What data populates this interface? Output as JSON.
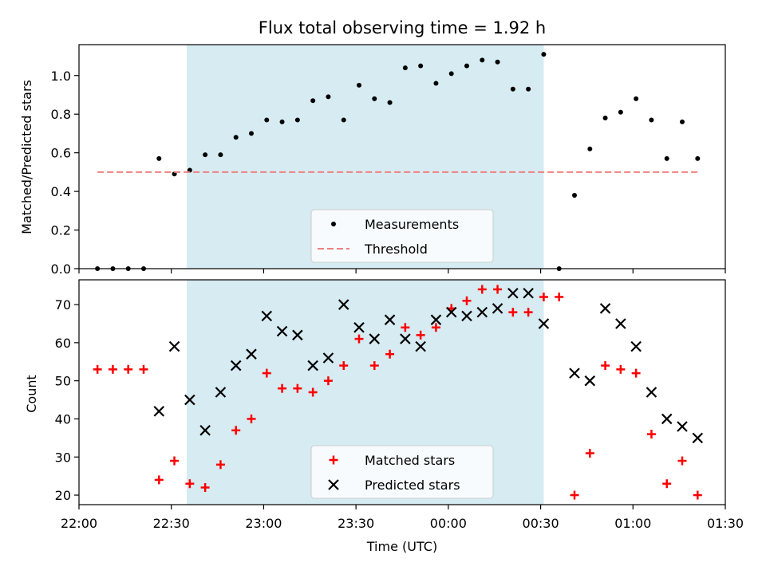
{
  "chart_data": [
    {
      "type": "scatter",
      "title": "Flux total observing time = 1.92 h",
      "xlabel": "",
      "ylabel": "Matched/Predicted stars",
      "xlim": [
        "22:00",
        "01:30"
      ],
      "ylim": [
        0.0,
        1.16
      ],
      "yticks": [
        "0.0",
        "0.2",
        "0.4",
        "0.6",
        "0.8",
        "1.0"
      ],
      "highlight_span": {
        "start": "22:35",
        "end": "00:31",
        "color": "#add8e6"
      },
      "series": [
        {
          "name": "Measurements",
          "marker": "dot",
          "color": "#000000",
          "x": [
            "22:06",
            "22:11",
            "22:16",
            "22:21",
            "22:26",
            "22:31",
            "22:36",
            "22:41",
            "22:46",
            "22:51",
            "22:56",
            "23:01",
            "23:06",
            "23:11",
            "23:16",
            "23:21",
            "23:26",
            "23:31",
            "23:36",
            "23:41",
            "23:46",
            "23:51",
            "23:56",
            "00:01",
            "00:06",
            "00:11",
            "00:16",
            "00:21",
            "00:26",
            "00:31",
            "00:36",
            "00:41",
            "00:46",
            "00:51",
            "00:56",
            "01:01",
            "01:06",
            "01:11",
            "01:16",
            "01:21"
          ],
          "y": [
            0.0,
            0.0,
            0.0,
            0.0,
            0.57,
            0.49,
            0.51,
            0.59,
            0.59,
            0.68,
            0.7,
            0.77,
            0.76,
            0.77,
            0.87,
            0.89,
            0.77,
            0.95,
            0.88,
            0.86,
            1.04,
            1.05,
            0.96,
            1.01,
            1.05,
            1.08,
            1.07,
            0.93,
            0.93,
            1.11,
            0.0,
            0.38,
            0.62,
            0.78,
            0.81,
            0.88,
            0.77,
            0.57,
            0.76,
            0.57
          ]
        },
        {
          "name": "Threshold",
          "marker": "dashed-line",
          "color": "#f08080",
          "x": [
            "22:06",
            "01:21"
          ],
          "y": [
            0.5,
            0.5
          ]
        }
      ],
      "legend": "lower-center"
    },
    {
      "type": "scatter",
      "xlabel": "Time (UTC)",
      "ylabel": "Count",
      "xlim": [
        "22:00",
        "01:30"
      ],
      "xticks": [
        "22:00",
        "22:30",
        "23:00",
        "23:30",
        "00:00",
        "00:30",
        "01:00",
        "01:30"
      ],
      "ylim": [
        17.5,
        76.5
      ],
      "yticks": [
        "20",
        "30",
        "40",
        "50",
        "60",
        "70"
      ],
      "highlight_span": {
        "start": "22:35",
        "end": "00:31",
        "color": "#add8e6"
      },
      "series": [
        {
          "name": "Matched stars",
          "marker": "plus",
          "color": "#ff0000",
          "x": [
            "22:06",
            "22:11",
            "22:16",
            "22:21",
            "22:26",
            "22:31",
            "22:36",
            "22:41",
            "22:46",
            "22:51",
            "22:56",
            "23:01",
            "23:06",
            "23:11",
            "23:16",
            "23:21",
            "23:26",
            "23:31",
            "23:36",
            "23:41",
            "23:46",
            "23:51",
            "23:56",
            "00:01",
            "00:06",
            "00:11",
            "00:16",
            "00:21",
            "00:26",
            "00:31",
            "00:36",
            "00:41",
            "00:46",
            "00:51",
            "00:56",
            "01:01",
            "01:06",
            "01:11",
            "01:16",
            "01:21"
          ],
          "y": [
            53,
            53,
            53,
            53,
            24,
            29,
            23,
            22,
            28,
            37,
            40,
            52,
            48,
            48,
            47,
            50,
            54,
            61,
            54,
            57,
            64,
            62,
            64,
            69,
            71,
            74,
            74,
            68,
            68,
            72,
            72,
            20,
            31,
            54,
            53,
            52,
            36,
            23,
            29,
            20
          ]
        },
        {
          "name": "Predicted stars",
          "marker": "x",
          "color": "#000000",
          "x": [
            "22:26",
            "22:31",
            "22:36",
            "22:41",
            "22:46",
            "22:51",
            "22:56",
            "23:01",
            "23:06",
            "23:11",
            "23:16",
            "23:21",
            "23:26",
            "23:31",
            "23:36",
            "23:41",
            "23:46",
            "23:51",
            "23:56",
            "00:01",
            "00:06",
            "00:11",
            "00:16",
            "00:21",
            "00:26",
            "00:31",
            "00:41",
            "00:46",
            "00:51",
            "00:56",
            "01:01",
            "01:06",
            "01:11",
            "01:16",
            "01:21"
          ],
          "y": [
            42,
            59,
            45,
            37,
            47,
            54,
            57,
            67,
            63,
            62,
            54,
            56,
            70,
            64,
            61,
            66,
            61,
            59,
            66,
            68,
            67,
            68,
            69,
            73,
            73,
            65,
            52,
            50,
            69,
            65,
            59,
            47,
            40,
            38,
            35
          ]
        }
      ],
      "legend": "lower-center"
    }
  ]
}
